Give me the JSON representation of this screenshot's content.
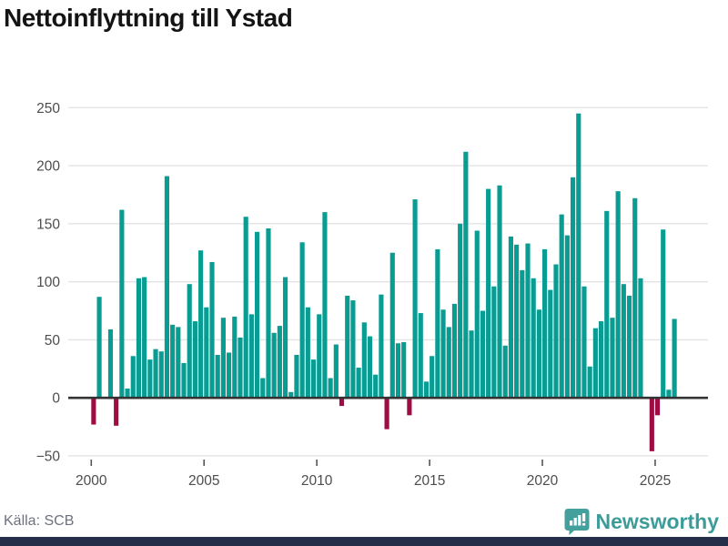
{
  "title": "Nettoinflyttning till Ystad",
  "source": "Källa: SCB",
  "brand": {
    "name": "Newsworthy",
    "badge_icon": "bar-chart-exclamation-pin",
    "badge_color": "#43a09d",
    "text_color": "#3d9c99",
    "bottom_bar_color": "#242e49"
  },
  "colors": {
    "positive_bar": "#089c92",
    "negative_bar": "#9d0d43",
    "zero_axis": "#333333",
    "gridline": "#e3e3e3",
    "tick_label": "#4d4d4d",
    "title_text": "#141414",
    "source_text": "#6d717c"
  },
  "chart_data": {
    "type": "bar",
    "title": "Nettoinflyttning till Ystad",
    "xlabel": "",
    "ylabel": "",
    "frequency": "quarterly",
    "start": "2000Q1",
    "end": "2025Q4",
    "x_tick_labels": [
      "2000",
      "2005",
      "2010",
      "2015",
      "2020",
      "2025"
    ],
    "y_tick_labels": [
      "−50",
      "0",
      "50",
      "100",
      "150",
      "200",
      "250"
    ],
    "y_ticks": [
      -50,
      0,
      50,
      100,
      150,
      200,
      250
    ],
    "ylim": [
      -60,
      260
    ],
    "grid": true,
    "legend": false,
    "values": [
      -23,
      87,
      1,
      59,
      -24,
      162,
      8,
      36,
      103,
      104,
      33,
      42,
      40,
      191,
      63,
      61,
      30,
      98,
      66,
      127,
      78,
      117,
      37,
      69,
      39,
      70,
      52,
      156,
      72,
      143,
      17,
      146,
      56,
      62,
      104,
      5,
      37,
      134,
      78,
      33,
      72,
      160,
      17,
      46,
      -7,
      88,
      84,
      26,
      65,
      53,
      20,
      89,
      -27,
      125,
      47,
      48,
      -15,
      171,
      73,
      14,
      36,
      128,
      76,
      61,
      81,
      150,
      212,
      58,
      144,
      75,
      180,
      96,
      183,
      45,
      139,
      132,
      110,
      133,
      103,
      76,
      128,
      93,
      115,
      158,
      140,
      190,
      245,
      96,
      27,
      60,
      66,
      161,
      69,
      178,
      98,
      88,
      172,
      103,
      1,
      -46,
      -15,
      145,
      7,
      68
    ]
  }
}
